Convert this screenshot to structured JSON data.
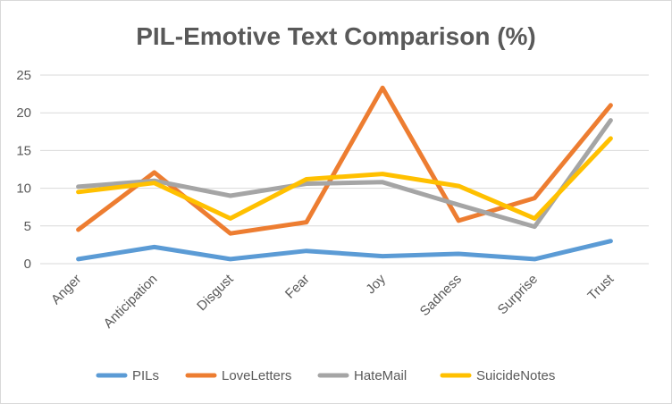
{
  "chart_data": {
    "type": "line",
    "title": "PIL-Emotive Text Comparison (%)",
    "xlabel": "",
    "ylabel": "",
    "categories": [
      "Anger",
      "Anticipation",
      "Disgust",
      "Fear",
      "Joy",
      "Sadness",
      "Surprise",
      "Trust"
    ],
    "ylim": [
      0,
      25
    ],
    "yticks": [
      0,
      5,
      10,
      15,
      20,
      25
    ],
    "grid": true,
    "legend_position": "bottom",
    "series": [
      {
        "name": "PILs",
        "color": "#5B9BD5",
        "values": [
          0.6,
          2.2,
          0.6,
          1.7,
          1.0,
          1.3,
          0.6,
          3.0
        ]
      },
      {
        "name": "LoveLetters",
        "color": "#ED7D31",
        "values": [
          4.5,
          12.1,
          4.0,
          5.5,
          23.3,
          5.7,
          8.7,
          21.0
        ]
      },
      {
        "name": "HateMail",
        "color": "#A5A5A5",
        "values": [
          10.2,
          11.0,
          9.0,
          10.6,
          10.8,
          7.8,
          4.9,
          19.0
        ]
      },
      {
        "name": "SuicideNotes",
        "color": "#FFC000",
        "values": [
          9.5,
          10.7,
          6.0,
          11.2,
          11.9,
          10.3,
          6.0,
          16.6
        ]
      }
    ]
  }
}
